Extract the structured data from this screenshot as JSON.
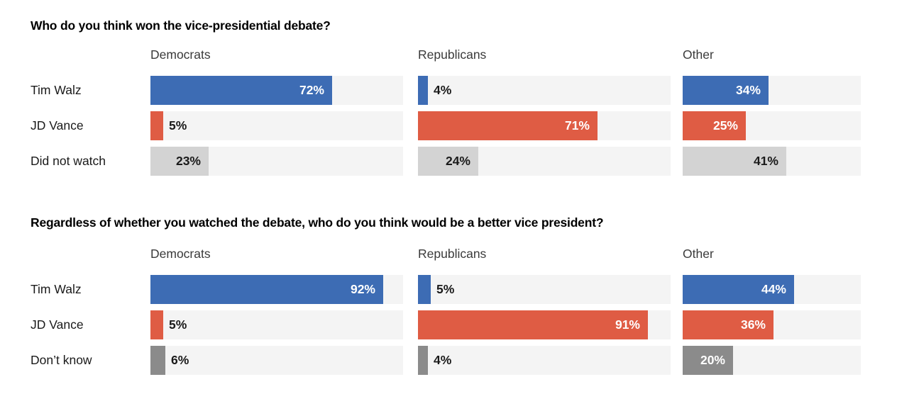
{
  "page": {
    "background": "#ffffff"
  },
  "colors": {
    "tim_walz_blue": "#3d6cb4",
    "jd_vance_red": "#df5c44",
    "did_not_watch_gray": "#d3d3d3",
    "dont_know_gray": "#8b8b8b",
    "bar_track": "#f4f4f4",
    "title_text": "#000000",
    "header_text": "#3a3a3a",
    "label_text": "#1a1a1a"
  },
  "chart_data": [
    {
      "type": "bar",
      "orientation": "horizontal",
      "title": "Who do you think won the vice-presidential debate?",
      "categories": [
        "Democrats",
        "Republicans",
        "Other"
      ],
      "unit": "%",
      "xlim": [
        0,
        100
      ],
      "grid": false,
      "legend": "none",
      "series": [
        {
          "name": "Tim Walz",
          "values": [
            72,
            4,
            34
          ],
          "color": "#3d6cb4",
          "label_in_color": "#ffffff"
        },
        {
          "name": "JD Vance",
          "values": [
            5,
            71,
            25
          ],
          "color": "#df5c44",
          "label_in_color": "#ffffff"
        },
        {
          "name": "Did not watch",
          "values": [
            23,
            24,
            41
          ],
          "color": "#d3d3d3",
          "label_in_color": "#1a1a1a"
        }
      ]
    },
    {
      "type": "bar",
      "orientation": "horizontal",
      "title": "Regardless of whether you watched the debate, who do you think would be a better vice president?",
      "categories": [
        "Democrats",
        "Republicans",
        "Other"
      ],
      "unit": "%",
      "xlim": [
        0,
        100
      ],
      "grid": false,
      "legend": "none",
      "series": [
        {
          "name": "Tim Walz",
          "values": [
            92,
            5,
            44
          ],
          "color": "#3d6cb4",
          "label_in_color": "#ffffff"
        },
        {
          "name": "JD Vance",
          "values": [
            5,
            91,
            36
          ],
          "color": "#df5c44",
          "label_in_color": "#ffffff"
        },
        {
          "name": "Don’t know",
          "values": [
            6,
            4,
            20
          ],
          "color": "#8b8b8b",
          "label_in_color": "#ffffff"
        }
      ]
    }
  ]
}
